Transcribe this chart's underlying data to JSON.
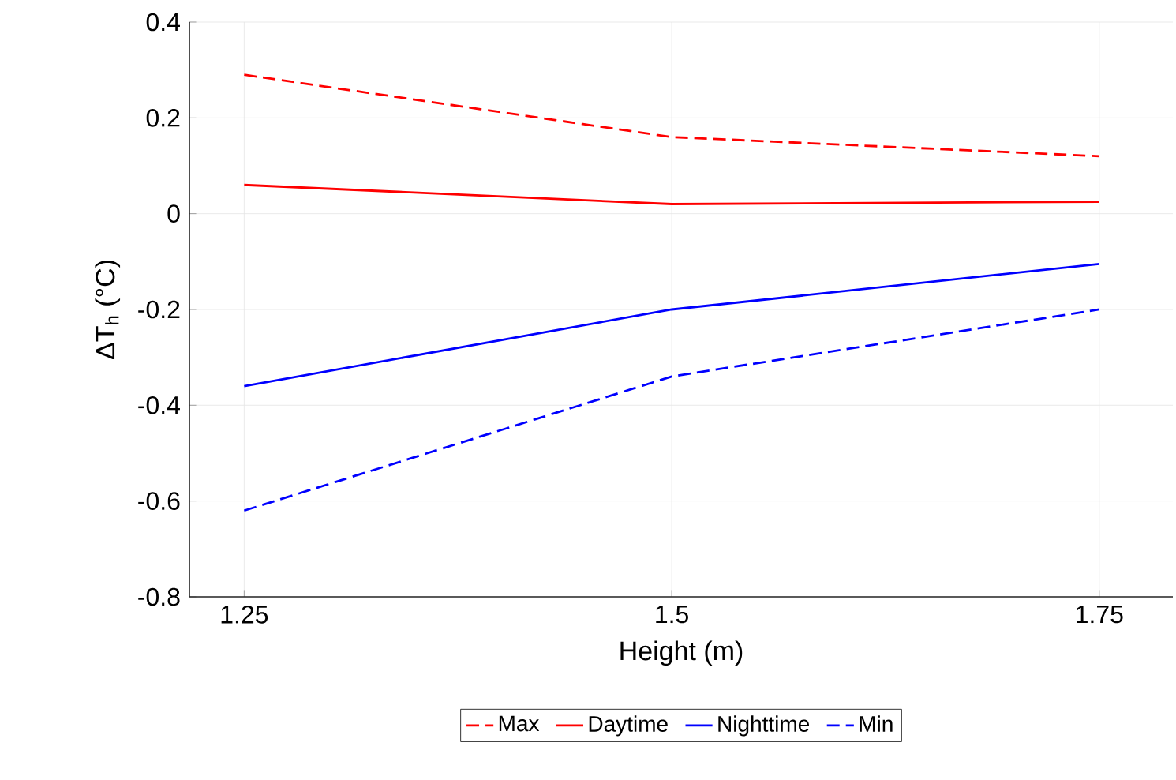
{
  "chart_data": {
    "type": "line",
    "xlabel": "Height (m)",
    "ylabel": "ΔT$_{h}$ (°C)",
    "x": [
      1.25,
      1.5,
      1.75
    ],
    "series": [
      {
        "name": "Max",
        "color": "#ff0000",
        "line_style": "dashed",
        "values": [
          0.29,
          0.16,
          0.12
        ]
      },
      {
        "name": "Daytime",
        "color": "#ff0000",
        "line_style": "solid",
        "values": [
          0.06,
          0.02,
          0.025
        ]
      },
      {
        "name": "Nighttime",
        "color": "#0000ff",
        "line_style": "solid",
        "values": [
          -0.36,
          -0.2,
          -0.105
        ]
      },
      {
        "name": "Min",
        "color": "#0000ff",
        "line_style": "dashed",
        "values": [
          -0.62,
          -0.34,
          -0.2
        ]
      }
    ],
    "xlim": [
      1.218,
      1.793
    ],
    "ylim": [
      -0.8,
      0.4
    ],
    "xticks": [
      1.25,
      1.5,
      1.75
    ],
    "yticks": [
      -0.8,
      -0.6,
      -0.4,
      -0.2,
      0,
      0.2,
      0.4
    ],
    "grid": true,
    "legend": "bottom",
    "marker": "none"
  }
}
